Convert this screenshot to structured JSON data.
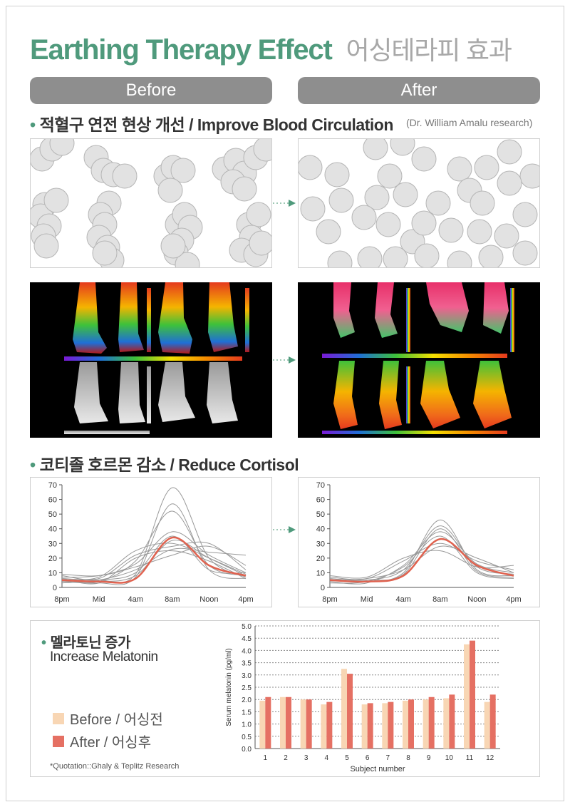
{
  "title": {
    "english": "Earthing Therapy Effect",
    "korean": "어싱테라피 효과"
  },
  "columns": {
    "before": "Before",
    "after": "After"
  },
  "section_blood": {
    "title": "적혈구 연전 현상 개선 / Improve Blood Circulation",
    "credit": "(Dr. William Amalu research)"
  },
  "section_cortisol": {
    "title": "코티졸 호르몬 감소 / Reduce Cortisol"
  },
  "cortisol_axis": {
    "y_ticks": [
      "70",
      "60",
      "50",
      "40",
      "30",
      "20",
      "10",
      "0"
    ],
    "x_ticks": [
      "8pm",
      "Mid",
      "4am",
      "8am",
      "Noon",
      "4pm"
    ]
  },
  "melatonin": {
    "title": "멜라토닌 증가",
    "subtitle": "Increase Melatonin",
    "legend_before": "Before / 어싱전",
    "legend_after": "After / 어싱후",
    "quotation": "*Quotation::Ghaly & Teplitz Research"
  },
  "colors": {
    "accent": "#4f9a7c",
    "before_bar": "#f8d6b4",
    "after_bar": "#e57063",
    "red_line": "#e0624f",
    "pill": "#8e8e8e"
  },
  "chart_data": [
    {
      "type": "line",
      "ylim": [
        0,
        70
      ],
      "x_categories": [
        "8pm",
        "Mid",
        "4am",
        "8am",
        "Noon",
        "4pm"
      ],
      "series": [
        {
          "values": [
            5,
            4,
            8,
            32,
            20,
            8
          ]
        },
        {
          "values": [
            6,
            5,
            9,
            68,
            20,
            7
          ]
        },
        {
          "values": [
            4,
            3,
            7,
            57,
            12,
            6
          ]
        },
        {
          "values": [
            7,
            8,
            16,
            38,
            22,
            10
          ]
        },
        {
          "values": [
            8,
            6,
            22,
            28,
            30,
            12
          ]
        },
        {
          "values": [
            3,
            5,
            12,
            26,
            24,
            22
          ]
        },
        {
          "values": [
            6,
            7,
            25,
            30,
            20,
            9
          ]
        },
        {
          "values": [
            5,
            4,
            18,
            52,
            15,
            8
          ]
        },
        {
          "values": [
            9,
            8,
            14,
            22,
            28,
            15
          ]
        },
        {
          "values": [
            4,
            5,
            10,
            35,
            12,
            10
          ]
        },
        {
          "values": [
            6,
            3,
            20,
            25,
            18,
            6
          ]
        },
        {
          "values": [
            5,
            4,
            6,
            34,
            15,
            8
          ]
        }
      ]
    },
    {
      "type": "line",
      "ylim": [
        0,
        70
      ],
      "x_categories": [
        "8pm",
        "Mid",
        "4am",
        "8am",
        "Noon",
        "4pm"
      ],
      "series": [
        {
          "values": [
            5,
            4,
            10,
            46,
            12,
            8
          ]
        },
        {
          "values": [
            6,
            5,
            12,
            42,
            14,
            9
          ]
        },
        {
          "values": [
            4,
            3,
            15,
            38,
            16,
            10
          ]
        },
        {
          "values": [
            7,
            6,
            18,
            30,
            18,
            12
          ]
        },
        {
          "values": [
            8,
            7,
            20,
            25,
            14,
            15
          ]
        },
        {
          "values": [
            3,
            4,
            14,
            35,
            10,
            6
          ]
        },
        {
          "values": [
            6,
            5,
            9,
            40,
            11,
            7
          ]
        },
        {
          "values": [
            5,
            6,
            12,
            28,
            20,
            10
          ]
        },
        {
          "values": [
            5,
            4,
            8,
            33,
            15,
            8
          ]
        }
      ]
    },
    {
      "type": "bar",
      "xlabel": "Subject number",
      "ylabel": "Serum melatonin (pg/ml)",
      "ylim": [
        0,
        5.0
      ],
      "y_ticks": [
        "5.0",
        "4.5",
        "4.0",
        "3.5",
        "3.0",
        "2.5",
        "2.0",
        "1.5",
        "1.0",
        "0.5",
        "0.0"
      ],
      "categories": [
        "1",
        "2",
        "3",
        "4",
        "5",
        "6",
        "7",
        "8",
        "9",
        "10",
        "11",
        "12"
      ],
      "series": [
        {
          "name": "Before / 어싱전",
          "values": [
            1.95,
            2.1,
            2.0,
            1.8,
            3.25,
            1.8,
            1.85,
            1.95,
            2.0,
            2.05,
            4.25,
            1.9
          ]
        },
        {
          "name": "After / 어싱후",
          "values": [
            2.1,
            2.1,
            2.0,
            1.9,
            3.05,
            1.85,
            1.9,
            2.0,
            2.1,
            2.2,
            4.4,
            2.2
          ]
        }
      ]
    }
  ]
}
